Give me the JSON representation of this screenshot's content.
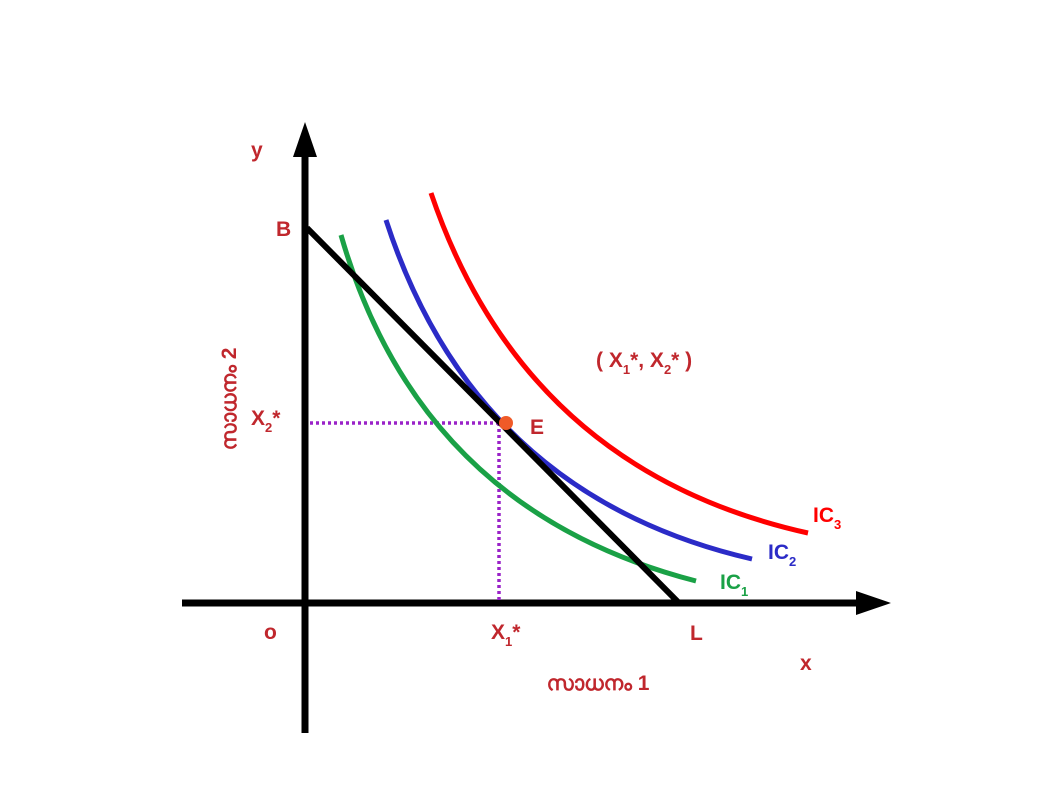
{
  "colors": {
    "axis": "#000000",
    "label": "#c0272d",
    "budget_line": "#000000",
    "ic1": "#1aa146",
    "ic2": "#2b2bc7",
    "ic3": "#ff0000",
    "guide": "#9a22c8",
    "point": "#f05a28"
  },
  "axes": {
    "y_name": "y",
    "x_name": "x",
    "origin": "o",
    "y_title": "സാധനം 2",
    "x_title": "സാധനം 1"
  },
  "points": {
    "budget_y_intercept": "B",
    "budget_x_intercept": "L",
    "equilibrium": "E"
  },
  "equilibrium_coords": {
    "open": "( X",
    "s1": "1",
    "mid": "*, X",
    "s2": "2",
    "close": "* )"
  },
  "x_star": {
    "base": "X",
    "sub": "1",
    "star": "*"
  },
  "y_star": {
    "base": "X",
    "sub": "2",
    "star": "*"
  },
  "curves": [
    {
      "id": "ic1",
      "base": "IC",
      "sub": "1"
    },
    {
      "id": "ic2",
      "base": "IC",
      "sub": "2"
    },
    {
      "id": "ic3",
      "base": "IC",
      "sub": "3"
    }
  ]
}
